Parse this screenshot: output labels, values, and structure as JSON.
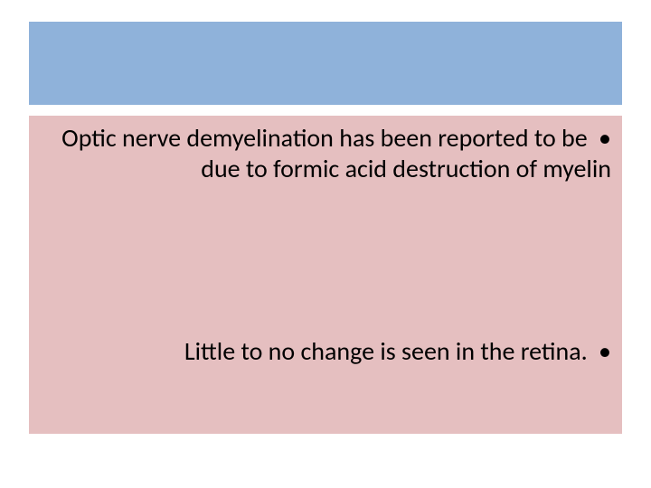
{
  "slide": {
    "background_color": "#ffffff",
    "title_band": {
      "background_color": "#8fb2da"
    },
    "body": {
      "background_color": "#e5bfc0",
      "text_color": "#000000",
      "font_size_pt": 28,
      "bullets": [
        "Optic nerve demyelination has been reported to be due to formic acid destruction of myelin",
        "Little to no change is seen in the retina."
      ],
      "bullet_marker": "•",
      "text_direction": "rtl"
    }
  }
}
